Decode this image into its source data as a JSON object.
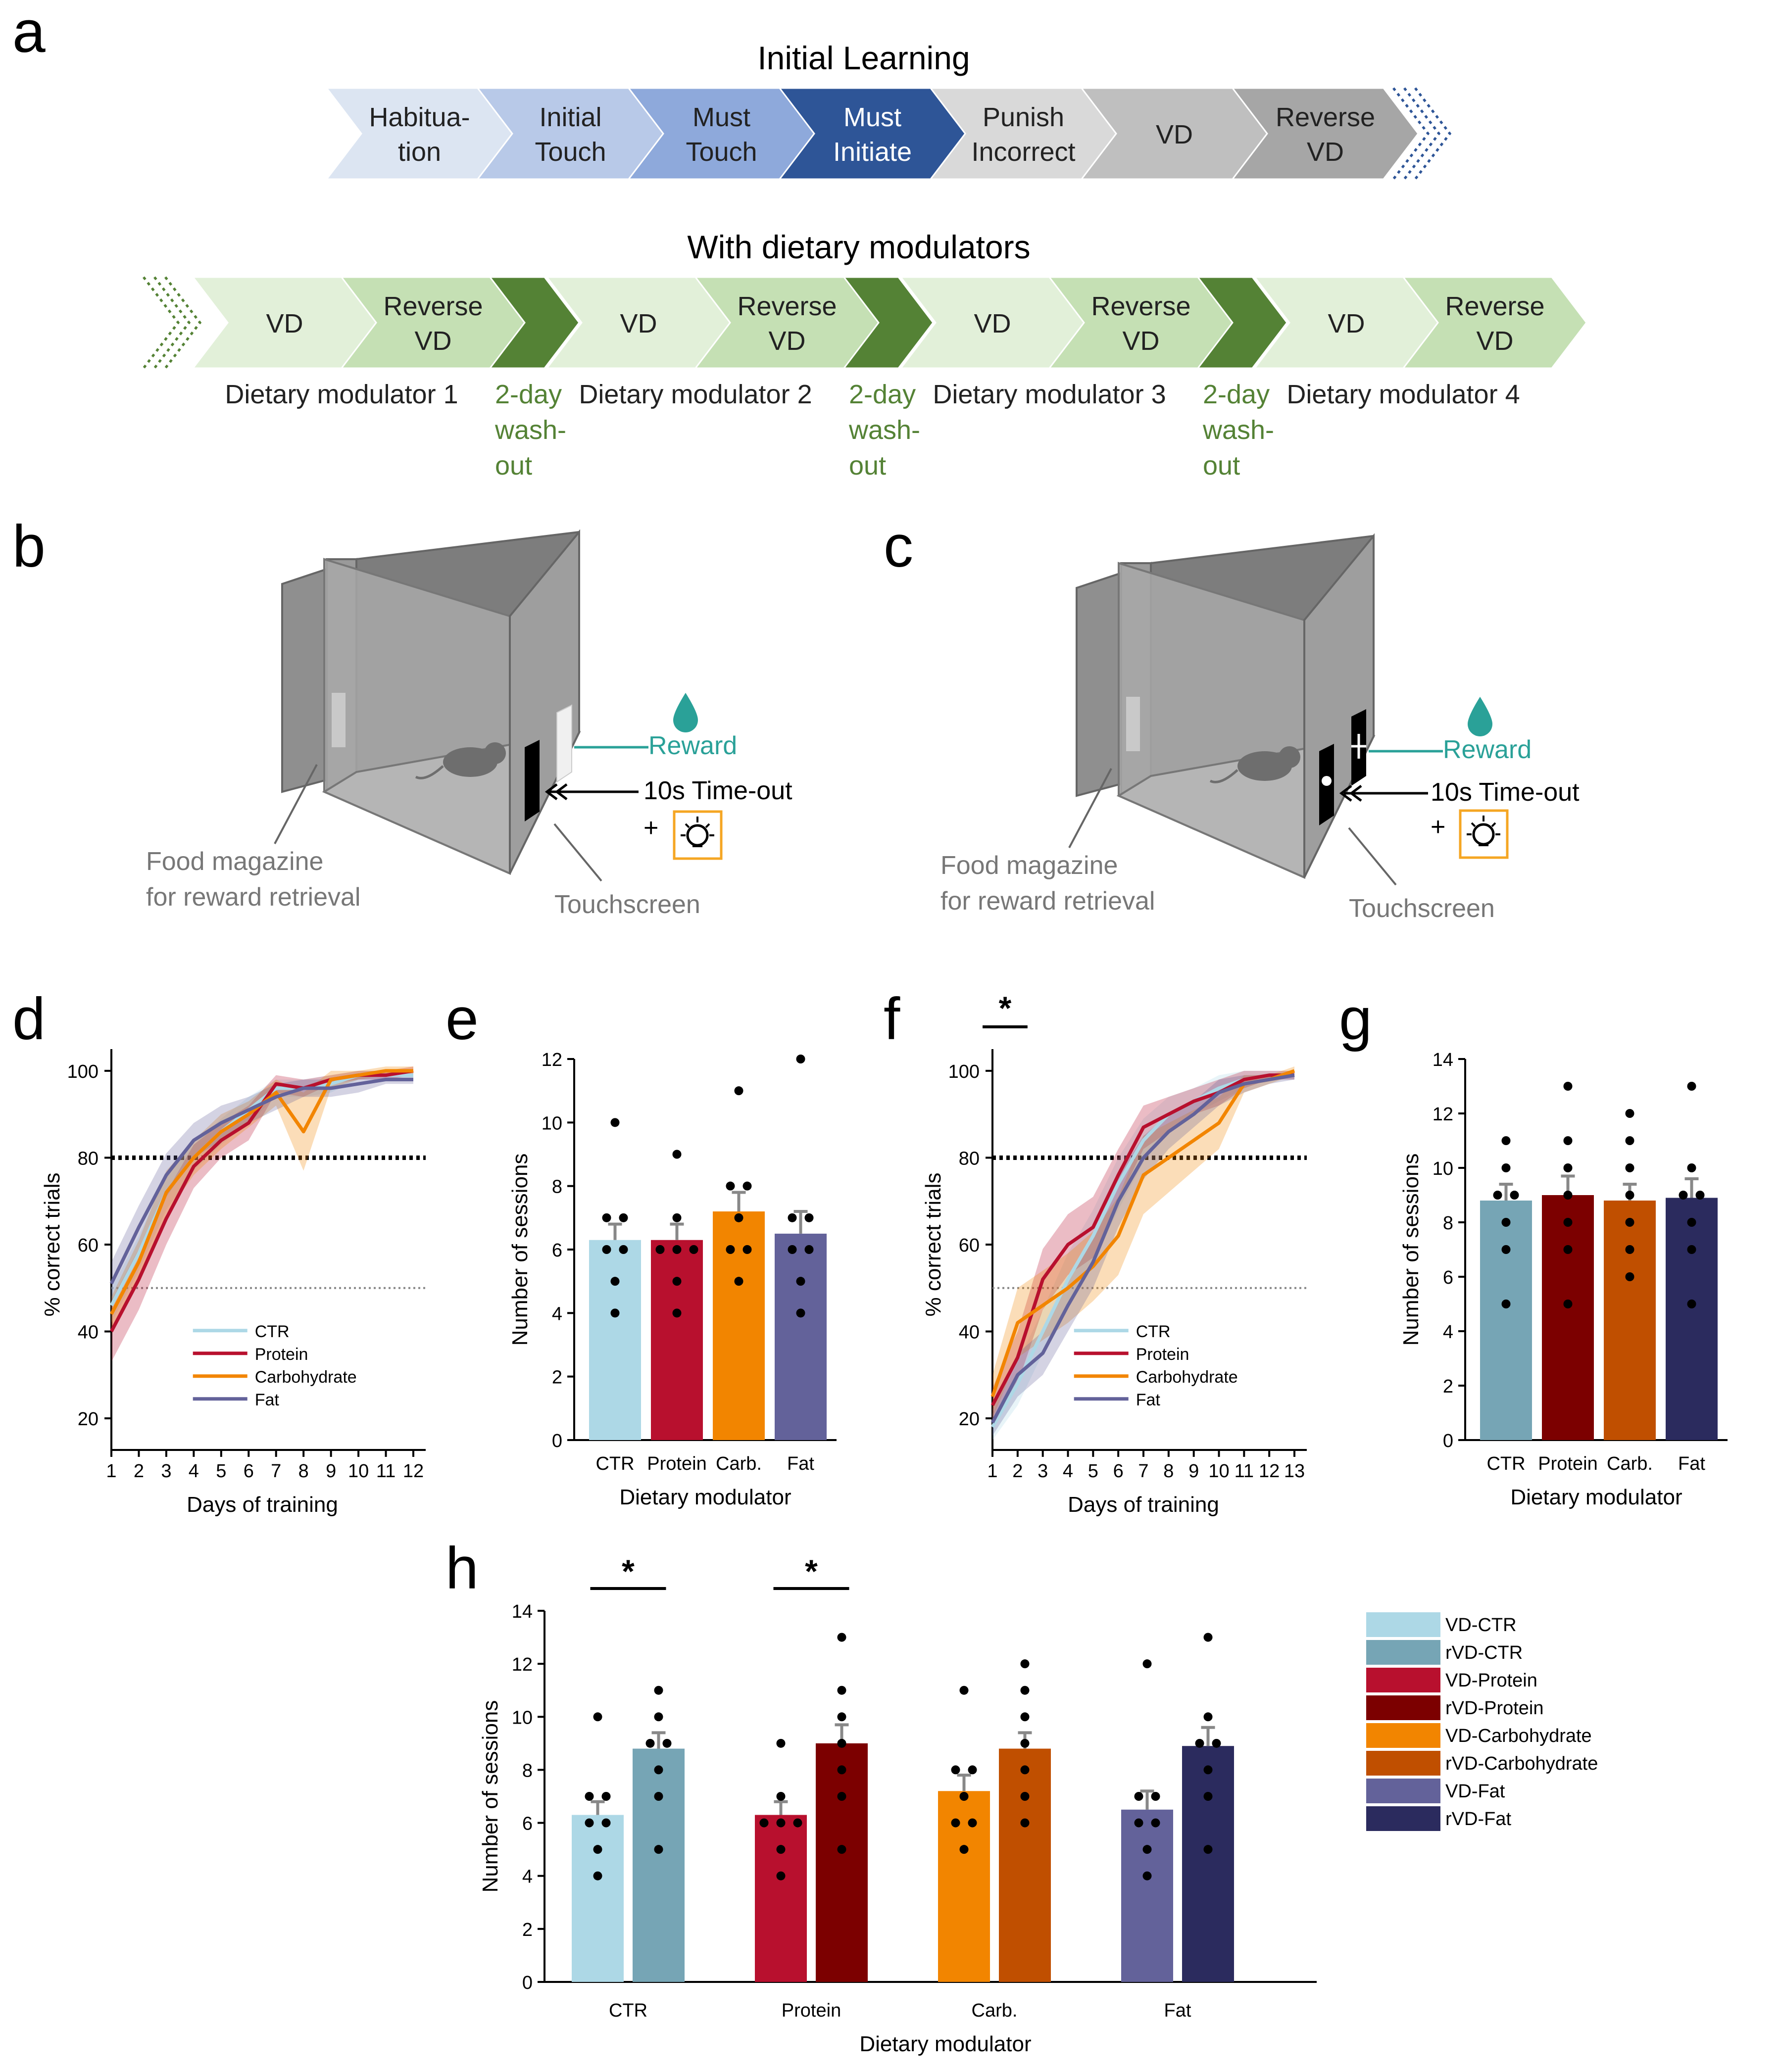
{
  "panel_labels": {
    "a": "a",
    "b": "b",
    "c": "c",
    "d": "d",
    "e": "e",
    "f": "f",
    "g": "g",
    "h": "h"
  },
  "panel_a": {
    "title_initial": "Initial Learning",
    "title_dietary": "With dietary modulators",
    "initial_steps": [
      {
        "lines": [
          "Habitua-",
          "tion"
        ],
        "fill": "#dce5f2",
        "text": "#222222"
      },
      {
        "lines": [
          "Initial",
          "Touch"
        ],
        "fill": "#b8c9e8",
        "text": "#222222"
      },
      {
        "lines": [
          "Must",
          "Touch"
        ],
        "fill": "#8ea9db",
        "text": "#222222"
      },
      {
        "lines": [
          "Must",
          "Initiate"
        ],
        "fill": "#2e5597",
        "text": "#ffffff"
      },
      {
        "lines": [
          "Punish",
          "Incorrect"
        ],
        "fill": "#d9d9d9",
        "text": "#222222"
      },
      {
        "lines": [
          "VD"
        ],
        "fill": "#bfbfbf",
        "text": "#222222"
      },
      {
        "lines": [
          "Reverse",
          "VD"
        ],
        "fill": "#a6a6a6",
        "text": "#222222"
      }
    ],
    "dietary_blocks": [
      {
        "vd": "VD",
        "rvd": [
          "Reverse",
          "VD"
        ],
        "label": "Dietary modulator 1"
      },
      {
        "vd": "VD",
        "rvd": [
          "Reverse",
          "VD"
        ],
        "label": "Dietary modulator 2"
      },
      {
        "vd": "VD",
        "rvd": [
          "Reverse",
          "VD"
        ],
        "label": "Dietary modulator 3"
      },
      {
        "vd": "VD",
        "rvd": [
          "Reverse",
          "VD"
        ],
        "label": "Dietary modulator 4"
      }
    ],
    "washout": [
      "2-day",
      "wash-",
      "out"
    ],
    "colors": {
      "title_initial": "#2e5597",
      "title_dietary": "#a9d18e",
      "washout": "#548235",
      "light_green": "#e2f0d9",
      "mid_green": "#c5e0b4",
      "dark_green": "#548235"
    }
  },
  "panel_b": {
    "reward": "Reward",
    "timeout": "10s Time-out",
    "plus": "+",
    "food_magazine": [
      "Food magazine",
      "for reward retrieval"
    ],
    "touchscreen": "Touchscreen"
  },
  "panel_c": {
    "reward": "Reward",
    "timeout": "10s Time-out",
    "plus": "+",
    "food_magazine": [
      "Food magazine",
      "for reward retrieval"
    ],
    "touchscreen": "Touchscreen"
  },
  "colors": {
    "reward": "#2aa198",
    "light_box": "#f5a623",
    "ctr": "#add8e6",
    "protein": "#b8102e",
    "carb": "#f28500",
    "fat": "#63629a",
    "rctr": "#76a5b5",
    "rprotein": "#7c0000",
    "rcarb": "#c04f00",
    "rfat": "#2b2b5e"
  },
  "chart_data": [
    {
      "panel": "d",
      "type": "line",
      "xlabel": "Days of training",
      "ylabel": "% correct trials",
      "xlim": [
        1,
        12
      ],
      "ylim": [
        15,
        105
      ],
      "x_ticks": [
        1,
        2,
        3,
        4,
        5,
        6,
        7,
        8,
        9,
        10,
        11,
        12
      ],
      "y_ticks": [
        20,
        40,
        60,
        80,
        100
      ],
      "reference_lines": [
        80,
        50
      ],
      "series": [
        {
          "name": "CTR",
          "color": "#add8e6",
          "x": [
            1,
            2,
            3,
            4,
            5,
            6,
            7,
            8,
            9,
            10,
            11,
            12
          ],
          "values": [
            46,
            58,
            72,
            80,
            86,
            91,
            96,
            96,
            97,
            99,
            99,
            99
          ],
          "sem": [
            4,
            4,
            4,
            3,
            3,
            3,
            2,
            2,
            2,
            1,
            1,
            1
          ]
        },
        {
          "name": "Protein",
          "color": "#b8102e",
          "x": [
            1,
            2,
            3,
            4,
            5,
            6,
            7,
            8,
            9,
            10,
            11,
            12
          ],
          "values": [
            40,
            52,
            66,
            78,
            84,
            88,
            97,
            96,
            98,
            99,
            99,
            100
          ],
          "sem": [
            7,
            7,
            6,
            5,
            4,
            4,
            2,
            2,
            1,
            1,
            1,
            1
          ]
        },
        {
          "name": "Carbohydrate",
          "color": "#f28500",
          "x": [
            1,
            2,
            3,
            4,
            5,
            6,
            7,
            8,
            9,
            10,
            11,
            12
          ],
          "values": [
            44,
            56,
            72,
            80,
            86,
            90,
            95,
            86,
            98,
            99,
            100,
            100
          ],
          "sem": [
            4,
            5,
            5,
            4,
            4,
            3,
            3,
            9,
            2,
            1,
            1,
            1
          ]
        },
        {
          "name": "Fat",
          "color": "#63629a",
          "x": [
            1,
            2,
            3,
            4,
            5,
            6,
            7,
            8,
            9,
            10,
            11,
            12
          ],
          "values": [
            51,
            64,
            76,
            84,
            88,
            91,
            94,
            96,
            96,
            97,
            98,
            98
          ],
          "sem": [
            5,
            5,
            5,
            4,
            4,
            3,
            3,
            2,
            2,
            2,
            1,
            1
          ]
        }
      ]
    },
    {
      "panel": "e",
      "type": "bar",
      "xlabel": "Dietary modulator",
      "ylabel": "Number of sessions",
      "ylim": [
        0,
        12
      ],
      "y_ticks": [
        0,
        2,
        4,
        6,
        8,
        10,
        12
      ],
      "categories": [
        "CTR",
        "Protein",
        "Carb.",
        "Fat"
      ],
      "values": [
        6.3,
        6.3,
        7.2,
        6.5
      ],
      "sem": [
        0.5,
        0.5,
        0.6,
        0.7
      ],
      "colors": [
        "#add8e6",
        "#b8102e",
        "#f28500",
        "#63629a"
      ],
      "points": [
        [
          4,
          5,
          6,
          6,
          7,
          7,
          10
        ],
        [
          4,
          5,
          6,
          6,
          6,
          7,
          9
        ],
        [
          5,
          6,
          6,
          7,
          8,
          8,
          11
        ],
        [
          4,
          5,
          6,
          6,
          7,
          7,
          12
        ]
      ]
    },
    {
      "panel": "f",
      "type": "line",
      "xlabel": "Days of training",
      "ylabel": "% correct trials",
      "xlim": [
        1,
        13
      ],
      "ylim": [
        15,
        105
      ],
      "x_ticks": [
        1,
        2,
        3,
        4,
        5,
        6,
        7,
        8,
        9,
        10,
        11,
        12,
        13
      ],
      "y_ticks": [
        20,
        40,
        60,
        80,
        100
      ],
      "reference_lines": [
        80,
        50
      ],
      "significance": {
        "label": "*",
        "from": 1,
        "to": 2
      },
      "series": [
        {
          "name": "CTR",
          "color": "#add8e6",
          "x": [
            1,
            2,
            3,
            4,
            5,
            6,
            7,
            8,
            9,
            10,
            11,
            12,
            13
          ],
          "values": [
            18,
            28,
            40,
            52,
            62,
            74,
            84,
            90,
            93,
            96,
            98,
            99,
            99
          ],
          "sem": [
            3,
            5,
            5,
            6,
            6,
            6,
            5,
            4,
            3,
            3,
            2,
            1,
            1
          ]
        },
        {
          "name": "Protein",
          "color": "#b8102e",
          "x": [
            1,
            2,
            3,
            4,
            5,
            6,
            7,
            8,
            9,
            10,
            11,
            12,
            13
          ],
          "values": [
            23,
            34,
            52,
            60,
            64,
            76,
            87,
            90,
            93,
            95,
            98,
            99,
            99
          ],
          "sem": [
            4,
            6,
            7,
            7,
            7,
            6,
            5,
            4,
            3,
            3,
            2,
            1,
            1
          ]
        },
        {
          "name": "Carbohydrate",
          "color": "#f28500",
          "x": [
            1,
            2,
            3,
            4,
            5,
            6,
            7,
            8,
            9,
            10,
            11,
            12,
            13
          ],
          "values": [
            25,
            42,
            46,
            50,
            55,
            62,
            76,
            80,
            84,
            88,
            97,
            98,
            100
          ],
          "sem": [
            5,
            8,
            8,
            8,
            8,
            9,
            9,
            8,
            7,
            6,
            2,
            1,
            1
          ]
        },
        {
          "name": "Fat",
          "color": "#63629a",
          "x": [
            1,
            2,
            3,
            4,
            5,
            6,
            7,
            8,
            9,
            10,
            11,
            12,
            13
          ],
          "values": [
            19,
            30,
            35,
            46,
            56,
            70,
            80,
            86,
            90,
            95,
            97,
            98,
            99
          ],
          "sem": [
            3,
            5,
            5,
            6,
            6,
            6,
            5,
            4,
            3,
            3,
            2,
            1,
            1
          ]
        }
      ]
    },
    {
      "panel": "g",
      "type": "bar",
      "xlabel": "Dietary modulator",
      "ylabel": "Number of sessions",
      "ylim": [
        0,
        14
      ],
      "y_ticks": [
        0,
        2,
        4,
        6,
        8,
        10,
        12,
        14
      ],
      "categories": [
        "CTR",
        "Protein",
        "Carb.",
        "Fat"
      ],
      "values": [
        8.8,
        9.0,
        8.8,
        8.9
      ],
      "sem": [
        0.6,
        0.7,
        0.6,
        0.7
      ],
      "colors": [
        "#76a5b5",
        "#7c0000",
        "#c04f00",
        "#2b2b5e"
      ],
      "points": [
        [
          5,
          7,
          8,
          9,
          9,
          10,
          11
        ],
        [
          5,
          7,
          8,
          9,
          10,
          11,
          13
        ],
        [
          6,
          7,
          8,
          9,
          10,
          11,
          12
        ],
        [
          5,
          7,
          8,
          9,
          9,
          10,
          13
        ]
      ]
    },
    {
      "panel": "h",
      "type": "bar",
      "xlabel": "Dietary modulator",
      "ylabel": "Number of sessions",
      "ylim": [
        0,
        14
      ],
      "y_ticks": [
        0,
        2,
        4,
        6,
        8,
        10,
        12,
        14
      ],
      "categories": [
        "CTR",
        "Protein",
        "Carb.",
        "Fat"
      ],
      "series": [
        {
          "name": "VD",
          "values": [
            6.3,
            6.3,
            7.2,
            6.5
          ],
          "sem": [
            0.5,
            0.5,
            0.6,
            0.7
          ],
          "colors": [
            "#add8e6",
            "#b8102e",
            "#f28500",
            "#63629a"
          ],
          "points": [
            [
              4,
              5,
              6,
              6,
              7,
              7,
              10
            ],
            [
              4,
              5,
              6,
              6,
              6,
              7,
              9
            ],
            [
              5,
              6,
              6,
              7,
              8,
              8,
              11
            ],
            [
              4,
              5,
              6,
              6,
              7,
              7,
              12
            ]
          ]
        },
        {
          "name": "rVD",
          "values": [
            8.8,
            9.0,
            8.8,
            8.9
          ],
          "sem": [
            0.6,
            0.7,
            0.6,
            0.7
          ],
          "colors": [
            "#76a5b5",
            "#7c0000",
            "#c04f00",
            "#2b2b5e"
          ],
          "points": [
            [
              5,
              7,
              8,
              9,
              9,
              10,
              11
            ],
            [
              5,
              7,
              8,
              9,
              10,
              11,
              13
            ],
            [
              6,
              7,
              8,
              9,
              10,
              11,
              12
            ],
            [
              5,
              7,
              8,
              9,
              9,
              10,
              13
            ]
          ]
        }
      ],
      "significance": [
        {
          "label": "*",
          "category": 0
        },
        {
          "label": "*",
          "category": 1
        }
      ],
      "legend": [
        {
          "label": "VD-CTR",
          "color": "#add8e6"
        },
        {
          "label": "rVD-CTR",
          "color": "#76a5b5"
        },
        {
          "label": "VD-Protein",
          "color": "#b8102e"
        },
        {
          "label": "rVD-Protein",
          "color": "#7c0000"
        },
        {
          "label": "VD-Carbohydrate",
          "color": "#f28500"
        },
        {
          "label": "rVD-Carbohydrate",
          "color": "#c04f00"
        },
        {
          "label": "VD-Fat",
          "color": "#63629a"
        },
        {
          "label": "rVD-Fat",
          "color": "#2b2b5e"
        }
      ]
    }
  ]
}
